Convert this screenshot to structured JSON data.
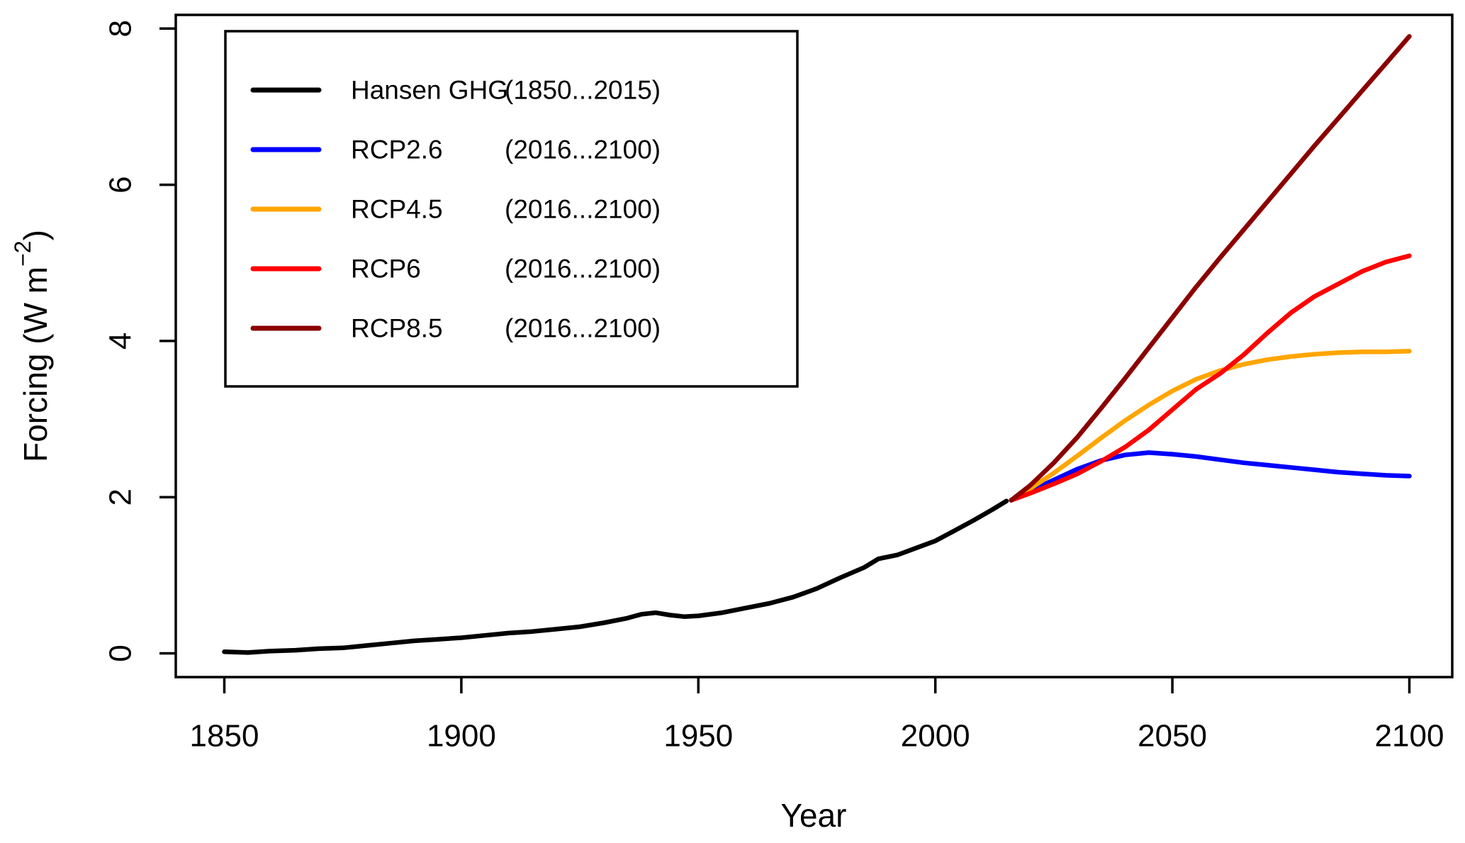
{
  "chart_data": {
    "type": "line",
    "title": "",
    "xlabel": "Year",
    "ylabel": "Forcing (W m^-2)",
    "ylabel_parts": {
      "main": "Forcing (W m",
      "sup": "−2",
      "close": ")"
    },
    "xlim": [
      1850,
      2100
    ],
    "ylim": [
      0,
      8
    ],
    "x_ticks": [
      1850,
      1900,
      1950,
      2000,
      2050,
      2100
    ],
    "y_ticks": [
      0,
      2,
      4,
      6,
      8
    ],
    "grid": false,
    "legend_position": "top-left",
    "axis_color": "#000000",
    "background_color": "#ffffff",
    "series": [
      {
        "name": "Hansen GHG",
        "period": "(1850...2015)",
        "color": "#000000",
        "x": [
          1850,
          1855,
          1860,
          1865,
          1870,
          1875,
          1880,
          1885,
          1890,
          1895,
          1900,
          1905,
          1910,
          1915,
          1920,
          1925,
          1930,
          1935,
          1938,
          1941,
          1944,
          1947,
          1950,
          1955,
          1960,
          1965,
          1970,
          1975,
          1980,
          1985,
          1988,
          1992,
          1996,
          2000,
          2004,
          2008,
          2012,
          2015
        ],
        "y": [
          0.02,
          0.01,
          0.03,
          0.04,
          0.06,
          0.07,
          0.1,
          0.13,
          0.16,
          0.18,
          0.2,
          0.23,
          0.26,
          0.28,
          0.31,
          0.34,
          0.39,
          0.45,
          0.5,
          0.52,
          0.49,
          0.47,
          0.48,
          0.52,
          0.58,
          0.64,
          0.72,
          0.83,
          0.97,
          1.1,
          1.21,
          1.26,
          1.35,
          1.44,
          1.57,
          1.7,
          1.84,
          1.95
        ]
      },
      {
        "name": "RCP2.6",
        "period": "(2016...2100)",
        "color": "#0000ff",
        "x": [
          2016,
          2020,
          2025,
          2030,
          2035,
          2040,
          2045,
          2050,
          2055,
          2060,
          2065,
          2070,
          2075,
          2080,
          2085,
          2090,
          2095,
          2100
        ],
        "y": [
          1.96,
          2.08,
          2.22,
          2.36,
          2.47,
          2.54,
          2.57,
          2.55,
          2.52,
          2.48,
          2.44,
          2.41,
          2.38,
          2.35,
          2.32,
          2.3,
          2.28,
          2.27
        ]
      },
      {
        "name": "RCP4.5",
        "period": "(2016...2100)",
        "color": "#ffa500",
        "x": [
          2016,
          2020,
          2025,
          2030,
          2035,
          2040,
          2045,
          2050,
          2055,
          2060,
          2065,
          2070,
          2075,
          2080,
          2085,
          2090,
          2095,
          2100
        ],
        "y": [
          1.96,
          2.11,
          2.31,
          2.53,
          2.76,
          2.98,
          3.18,
          3.36,
          3.51,
          3.62,
          3.7,
          3.76,
          3.8,
          3.83,
          3.85,
          3.86,
          3.86,
          3.87
        ]
      },
      {
        "name": "RCP6",
        "period": "(2016...2100)",
        "color": "#ff0000",
        "x": [
          2016,
          2020,
          2025,
          2030,
          2035,
          2040,
          2045,
          2050,
          2055,
          2060,
          2065,
          2070,
          2075,
          2080,
          2085,
          2090,
          2095,
          2100
        ],
        "y": [
          1.96,
          2.05,
          2.17,
          2.3,
          2.46,
          2.64,
          2.86,
          3.12,
          3.38,
          3.58,
          3.82,
          4.1,
          4.36,
          4.57,
          4.73,
          4.89,
          5.01,
          5.09
        ]
      },
      {
        "name": "RCP8.5",
        "period": "(2016...2100)",
        "color": "#8b0000",
        "x": [
          2016,
          2020,
          2025,
          2030,
          2035,
          2040,
          2045,
          2050,
          2055,
          2060,
          2065,
          2070,
          2075,
          2080,
          2085,
          2090,
          2095,
          2100
        ],
        "y": [
          1.96,
          2.15,
          2.44,
          2.77,
          3.14,
          3.52,
          3.91,
          4.3,
          4.69,
          5.06,
          5.42,
          5.78,
          6.14,
          6.5,
          6.85,
          7.2,
          7.55,
          7.9
        ]
      }
    ]
  }
}
